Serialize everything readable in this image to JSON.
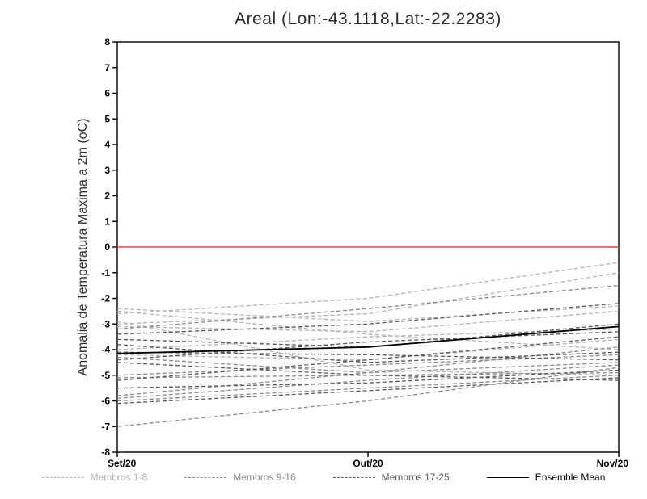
{
  "chart_data": {
    "type": "line",
    "title": "Areal (Lon:-43.1118,Lat:-22.2283)",
    "ylabel": "Anomalia de Temperatura Maxima a 2m (oC)",
    "xlabel": "",
    "x_categories": [
      "Set/20",
      "Out/20",
      "Nov/20"
    ],
    "ylim": [
      -8,
      8
    ],
    "ytick_step": 1,
    "grid": false,
    "zero_line": {
      "value": 0,
      "color": "#f93b3b"
    },
    "groups": [
      {
        "name": "Membros 1-8",
        "color": "#b4b4b4",
        "style": "dashed",
        "members": [
          [
            -2.4,
            -2.9,
            -2.3
          ],
          [
            -2.5,
            -3.4,
            -4.0
          ],
          [
            -3.0,
            -2.6,
            -1.0
          ],
          [
            -3.1,
            -3.3,
            -2.5
          ],
          [
            -2.9,
            -4.8,
            -5.0
          ],
          [
            -4.0,
            -3.5,
            -3.2
          ],
          [
            -4.2,
            -4.4,
            -3.6
          ],
          [
            -2.6,
            -2.0,
            -0.6
          ]
        ]
      },
      {
        "name": "Membros 9-16",
        "color": "#8a8a8a",
        "style": "dashed",
        "members": [
          [
            -4.3,
            -4.9,
            -4.5
          ],
          [
            -5.0,
            -4.6,
            -4.2
          ],
          [
            -5.1,
            -5.0,
            -4.9
          ],
          [
            -5.8,
            -4.9,
            -3.9
          ],
          [
            -5.9,
            -5.2,
            -4.6
          ],
          [
            -6.0,
            -5.5,
            -5.0
          ],
          [
            -7.0,
            -6.0,
            -4.7
          ],
          [
            -3.2,
            -2.4,
            -1.5
          ]
        ]
      },
      {
        "name": "Membros 17-25",
        "color": "#595959",
        "style": "dashed",
        "members": [
          [
            -3.4,
            -3.0,
            -2.2
          ],
          [
            -3.6,
            -3.9,
            -3.0
          ],
          [
            -4.1,
            -4.2,
            -4.4
          ],
          [
            -4.4,
            -3.7,
            -3.3
          ],
          [
            -4.5,
            -5.0,
            -5.2
          ],
          [
            -5.2,
            -4.4,
            -3.5
          ],
          [
            -5.5,
            -5.3,
            -4.8
          ],
          [
            -6.1,
            -5.6,
            -5.1
          ],
          [
            -3.8,
            -4.5,
            -4.1
          ]
        ]
      }
    ],
    "mean": {
      "name": "Ensemble Mean",
      "color": "#000000",
      "style": "solid",
      "values": [
        -4.15,
        -3.9,
        -3.1
      ]
    },
    "legend": [
      {
        "label": "Membros 1-8",
        "color": "#b4b4b4",
        "style": "dashed"
      },
      {
        "label": "Membros 9-16",
        "color": "#8a8a8a",
        "style": "dashed"
      },
      {
        "label": "Membros 17-25",
        "color": "#595959",
        "style": "dashed"
      },
      {
        "label": "Ensemble Mean",
        "color": "#000000",
        "style": "solid"
      }
    ],
    "legend_position": "bottom"
  }
}
